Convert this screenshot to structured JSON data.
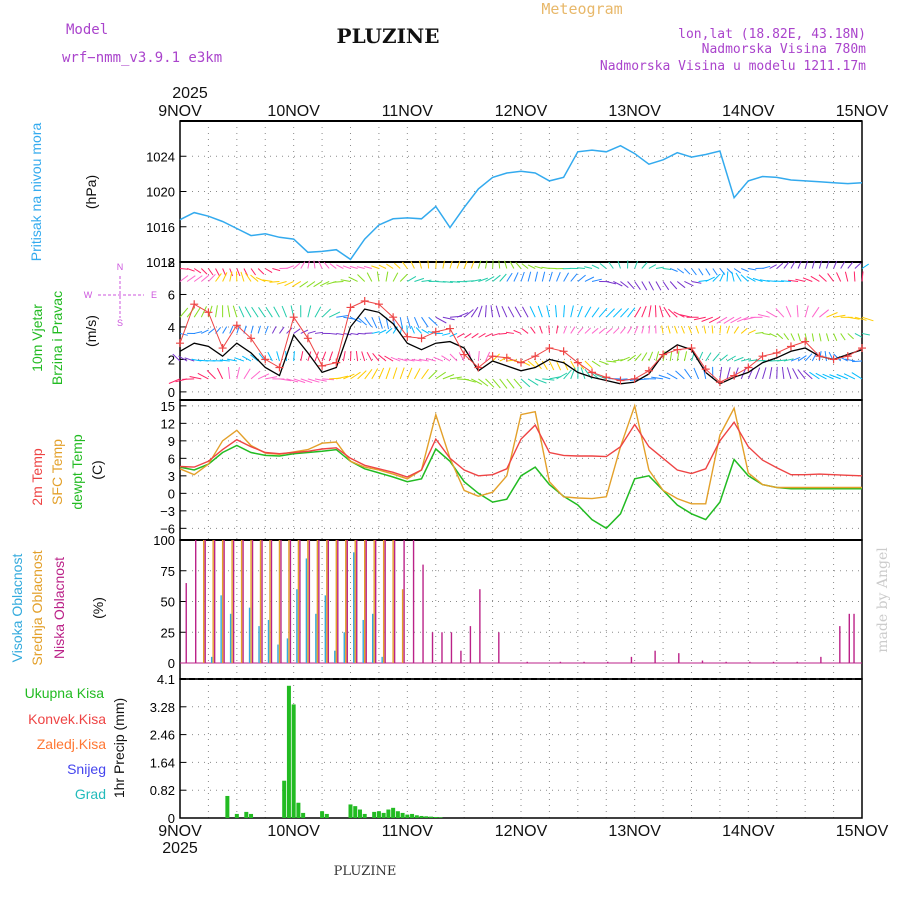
{
  "header": {
    "model_label": "Model",
    "model_name": "wrf−nmm_v3.9.1  e3km",
    "station": "PLUZINE",
    "product": "Meteogram",
    "coords": "lon,lat (18.82E, 43.18N)",
    "elevation": "Nadmorska Visina 780m",
    "model_elevation": "Nadmorska Visina u modelu 1211.17m",
    "credit": "made by Angel",
    "footer_station": "PLUZINE"
  },
  "colors": {
    "pressure": "#33aaee",
    "temp2m": "#ee4444",
    "sfc": "#e3a02a",
    "dewpt": "#22bb22",
    "high_cloud": "#33aadd",
    "mid_cloud": "#e3a02a",
    "low_cloud": "#bb2288",
    "total_precip": "#22bb22",
    "convective": "#ee4444",
    "freezing": "#ff7733",
    "snow": "#4444ee",
    "hail": "#22bbbb",
    "model_text": "#aa44cc",
    "meteogram_text": "#e8b86a",
    "wind_speed": "#000000",
    "gust": "#ee4444"
  },
  "time_axis": {
    "year": "2025",
    "ticks": [
      "9NOV",
      "10NOV",
      "11NOV",
      "12NOV",
      "13NOV",
      "14NOV",
      "15NOV"
    ]
  },
  "chart_data": [
    {
      "type": "line",
      "id": "pressure",
      "title": "Pritisak na nivou mora",
      "ylabel": "(hPa)",
      "ylim": [
        1012,
        1028
      ],
      "yticks": [
        1012,
        1016,
        1020,
        1024
      ],
      "x_hours": [
        0,
        3,
        6,
        9,
        12,
        15,
        18,
        21,
        24,
        27,
        30,
        33,
        36,
        39,
        42,
        45,
        48,
        51,
        54,
        57,
        60,
        63,
        66,
        69,
        72,
        75,
        78,
        81,
        84,
        87,
        90,
        93,
        96,
        99,
        102,
        105,
        108,
        111,
        114,
        117,
        120,
        123,
        126,
        129,
        132,
        135,
        138,
        141,
        144
      ],
      "values": [
        1016.8,
        1017.6,
        1017.2,
        1016.6,
        1015.8,
        1015.0,
        1015.2,
        1014.8,
        1014.6,
        1013.1,
        1013.2,
        1013.4,
        1012.3,
        1014.6,
        1016.2,
        1016.9,
        1017.0,
        1016.9,
        1018.3,
        1015.9,
        1018.2,
        1020.3,
        1021.6,
        1022.1,
        1022.3,
        1022.1,
        1021.2,
        1021.6,
        1024.5,
        1024.7,
        1024.5,
        1025.2,
        1024.3,
        1023.1,
        1023.6,
        1024.4,
        1023.9,
        1024.2,
        1024.6,
        1019.3,
        1021.2,
        1021.7,
        1021.6,
        1021.3,
        1021.2,
        1021.1,
        1021.0,
        1020.9,
        1021.0
      ]
    },
    {
      "type": "line",
      "id": "wind",
      "title": "10m Vjetar",
      "subtitle": "Brzina i Pravac",
      "ylabel": "(m/s)",
      "ylim": [
        -0.5,
        8
      ],
      "yticks": [
        0,
        2,
        4,
        6,
        8
      ],
      "compass": [
        "N",
        "W",
        "E",
        "S"
      ],
      "x_hours": [
        0,
        3,
        6,
        9,
        12,
        15,
        18,
        21,
        24,
        27,
        30,
        33,
        36,
        39,
        42,
        45,
        48,
        51,
        54,
        57,
        60,
        63,
        66,
        69,
        72,
        75,
        78,
        81,
        84,
        87,
        90,
        93,
        96,
        99,
        102,
        105,
        108,
        111,
        114,
        117,
        120,
        123,
        126,
        129,
        132,
        135,
        138,
        141,
        144
      ],
      "series": [
        {
          "name": "speed",
          "values": [
            2.5,
            3.0,
            2.8,
            2.2,
            3.0,
            2.4,
            1.5,
            1.0,
            3.5,
            2.4,
            1.2,
            1.5,
            4.0,
            5.1,
            4.9,
            4.2,
            3.0,
            2.6,
            3.0,
            3.1,
            2.7,
            1.3,
            1.9,
            1.6,
            1.3,
            1.5,
            2.0,
            1.8,
            1.2,
            0.9,
            0.7,
            0.5,
            0.6,
            1.1,
            2.3,
            2.9,
            2.6,
            1.2,
            0.5,
            0.9,
            1.2,
            1.8,
            2.1,
            2.5,
            2.7,
            2.2,
            2.0,
            2.3,
            2.6
          ]
        },
        {
          "name": "gust",
          "values": [
            3.0,
            5.4,
            4.9,
            2.7,
            4.1,
            3.3,
            2.0,
            1.5,
            4.6,
            3.3,
            1.6,
            1.8,
            5.2,
            5.6,
            5.4,
            4.6,
            3.4,
            3.3,
            3.7,
            3.9,
            2.3,
            1.5,
            2.2,
            2.1,
            1.8,
            2.2,
            2.7,
            2.5,
            1.8,
            1.2,
            0.9,
            0.7,
            0.8,
            1.3,
            2.3,
            2.6,
            2.7,
            1.4,
            0.6,
            1.0,
            1.5,
            2.2,
            2.4,
            2.8,
            3.1,
            2.2,
            2.0,
            2.2,
            2.7
          ]
        }
      ]
    },
    {
      "type": "line",
      "id": "temperature",
      "title": "2m Temp",
      "subtitle": "SFC Temp",
      "subtitle2": "dewpt Temp",
      "ylabel": "(C)",
      "ylim": [
        -8,
        16
      ],
      "yticks": [
        -6,
        -3,
        0,
        3,
        6,
        9,
        12,
        15
      ],
      "x_hours": [
        0,
        3,
        6,
        9,
        12,
        15,
        18,
        21,
        24,
        27,
        30,
        33,
        36,
        39,
        42,
        45,
        48,
        51,
        54,
        57,
        60,
        63,
        66,
        69,
        72,
        75,
        78,
        81,
        84,
        87,
        90,
        93,
        96,
        99,
        102,
        105,
        108,
        111,
        114,
        117,
        120,
        123,
        126,
        129,
        132,
        135,
        138,
        141,
        144
      ],
      "series": [
        {
          "name": "2m Temp",
          "values": [
            4.6,
            4.5,
            5.5,
            7.5,
            9.2,
            8.0,
            7.0,
            6.8,
            7.0,
            7.2,
            7.6,
            7.8,
            6.0,
            4.8,
            4.2,
            3.6,
            2.8,
            4.0,
            9.3,
            6.0,
            4.0,
            3.0,
            3.2,
            4.2,
            9.3,
            11.7,
            7.0,
            6.5,
            6.4,
            6.4,
            6.3,
            8.0,
            11.8,
            8.0,
            6.0,
            4.0,
            3.4,
            4.2,
            9.0,
            12.2,
            8.0,
            5.7,
            4.4,
            3.2,
            3.2,
            3.3,
            3.2,
            3.1,
            3.0
          ]
        },
        {
          "name": "SFC Temp",
          "values": [
            4.2,
            3.2,
            5.0,
            9.0,
            10.8,
            8.2,
            6.9,
            6.7,
            7.1,
            7.5,
            8.6,
            8.8,
            5.5,
            4.5,
            4.0,
            3.3,
            2.5,
            4.0,
            13.5,
            6.0,
            0.5,
            -0.5,
            0.2,
            3.0,
            13.5,
            14.0,
            2.0,
            -0.6,
            -0.8,
            -0.9,
            -0.6,
            8.0,
            15.0,
            4.0,
            0.5,
            -0.9,
            -1.8,
            -1.8,
            10.0,
            14.6,
            3.5,
            1.5,
            1.0,
            1.0,
            1.0,
            1.0,
            1.0,
            1.0,
            1.0
          ]
        },
        {
          "name": "dewpt Temp",
          "values": [
            4.5,
            4.0,
            5.0,
            7.0,
            8.2,
            7.0,
            6.5,
            6.4,
            6.8,
            7.0,
            7.2,
            7.5,
            5.5,
            4.2,
            3.5,
            2.8,
            2.0,
            2.5,
            7.6,
            5.5,
            2.0,
            0.0,
            -1.5,
            -1.0,
            3.0,
            4.5,
            1.5,
            -0.5,
            -2.0,
            -4.5,
            -6.0,
            -3.5,
            2.5,
            3.0,
            0.5,
            -2.0,
            -3.5,
            -4.5,
            -1.5,
            5.8,
            3.0,
            1.5,
            1.0,
            0.8,
            0.8,
            0.8,
            0.8,
            0.8,
            0.8
          ]
        }
      ]
    },
    {
      "type": "bar",
      "id": "clouds",
      "title": "Visoka Oblacnost",
      "subtitle": "Srednja Oblacnost",
      "subtitle2": "Niska Oblacnost",
      "ylabel": "(%)",
      "ylim": [
        0,
        100
      ],
      "yticks": [
        0,
        25,
        50,
        75,
        100
      ],
      "x_hours": [
        1,
        3,
        5,
        7,
        9,
        11,
        13,
        15,
        17,
        19,
        21,
        23,
        25,
        27,
        29,
        31,
        33,
        35,
        37,
        39,
        41,
        43,
        45,
        47,
        49,
        51,
        53,
        55,
        57,
        59,
        61,
        63,
        67,
        73,
        80,
        85,
        90,
        95,
        100,
        105,
        110,
        115,
        120,
        125,
        130,
        135,
        139,
        141,
        142
      ],
      "series": [
        {
          "name": "Visoka Oblacnost",
          "values": [
            0,
            0,
            0,
            5,
            55,
            40,
            0,
            45,
            30,
            35,
            15,
            20,
            60,
            85,
            40,
            55,
            10,
            25,
            90,
            35,
            40,
            5,
            0,
            0,
            0,
            0,
            0,
            0,
            0,
            0,
            0,
            0,
            0,
            0,
            0,
            0,
            0,
            0,
            0,
            0,
            0,
            0,
            0,
            0,
            0,
            0,
            0,
            0,
            0
          ]
        },
        {
          "name": "Srednja Oblacnost",
          "values": [
            0,
            0,
            100,
            100,
            100,
            100,
            100,
            100,
            100,
            100,
            100,
            100,
            100,
            100,
            100,
            100,
            100,
            100,
            100,
            100,
            100,
            100,
            100,
            60,
            0,
            0,
            0,
            0,
            0,
            0,
            0,
            0,
            0,
            0,
            0,
            0,
            0,
            0,
            0,
            0,
            0,
            0,
            0,
            0,
            0,
            0,
            0,
            0,
            0
          ]
        },
        {
          "name": "Niska Oblacnost",
          "values": [
            65,
            100,
            100,
            100,
            100,
            100,
            100,
            100,
            100,
            100,
            100,
            100,
            100,
            100,
            100,
            100,
            100,
            100,
            100,
            100,
            100,
            100,
            100,
            100,
            100,
            80,
            25,
            25,
            25,
            10,
            30,
            60,
            25,
            1,
            1,
            1,
            1,
            5,
            10,
            8,
            2,
            1,
            1,
            1,
            1,
            5,
            30,
            40,
            40
          ]
        }
      ]
    },
    {
      "type": "bar",
      "id": "precip",
      "title": "Ukupna Kisa",
      "legend": [
        "Ukupna Kisa",
        "Konvek.Kisa",
        "Zaledj.Kisa",
        "Snijeg",
        "Grad"
      ],
      "ylabel": "1hr Precip (mm)",
      "ylim": [
        0,
        4.1
      ],
      "yticks": [
        0,
        0.82,
        1.64,
        2.46,
        3.28,
        4.1
      ],
      "x_hours": [
        10,
        12,
        14,
        15,
        22,
        23,
        24,
        25,
        26,
        30,
        31,
        36,
        37,
        38,
        39,
        41,
        42,
        43,
        44,
        45,
        46,
        47,
        48,
        49,
        50,
        51,
        52,
        53,
        54,
        55
      ],
      "values": [
        0.65,
        0.12,
        0.18,
        0.12,
        1.1,
        3.9,
        3.35,
        0.45,
        0.15,
        0.2,
        0.12,
        0.4,
        0.35,
        0.25,
        0.12,
        0.18,
        0.2,
        0.15,
        0.25,
        0.3,
        0.2,
        0.15,
        0.1,
        0.12,
        0.08,
        0.06,
        0.05,
        0.04,
        0.03,
        0.02
      ]
    }
  ]
}
